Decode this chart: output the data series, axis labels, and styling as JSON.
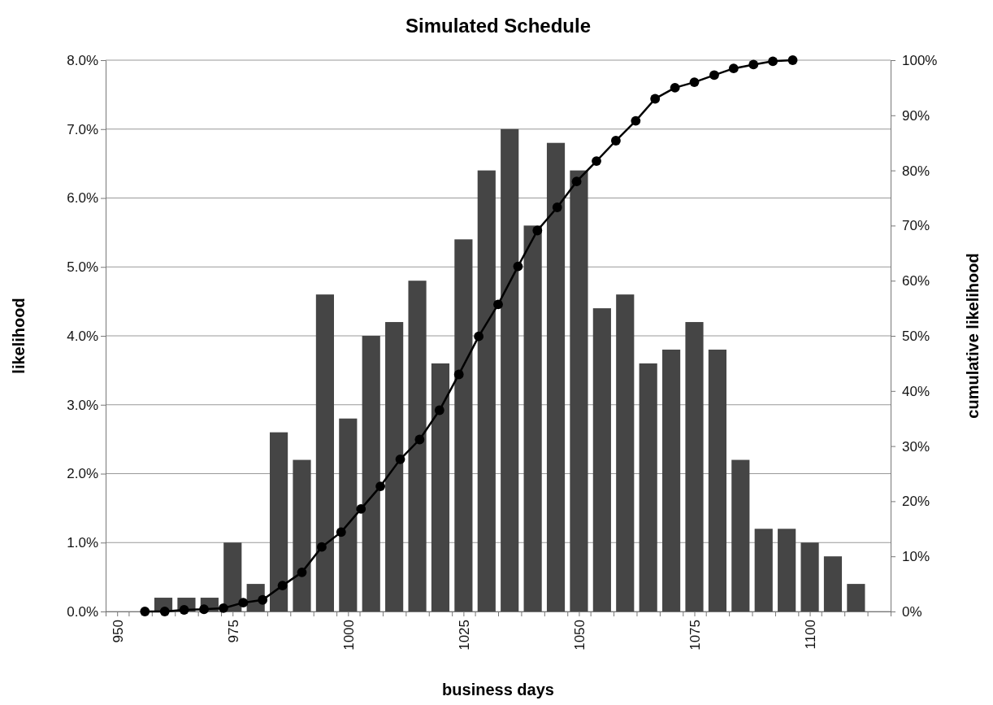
{
  "chart_data": {
    "type": "bar",
    "title": "Simulated Schedule",
    "xlabel": "business days",
    "ylabel": "likelihood",
    "y2label": "cumulative likelihood",
    "x": [
      960,
      965,
      970,
      975,
      980,
      985,
      990,
      995,
      1000,
      1005,
      1010,
      1015,
      1020,
      1025,
      1030,
      1035,
      1040,
      1045,
      1050,
      1055,
      1060,
      1065,
      1070,
      1075,
      1080,
      1085,
      1090,
      1095,
      1100,
      1105,
      1110
    ],
    "series": [
      {
        "color": "#454545",
        "values": [
          0.2,
          0.2,
          0.2,
          1.0,
          0.4,
          2.6,
          2.2,
          4.6,
          2.8,
          4.0,
          4.2,
          4.8,
          3.6,
          5.4,
          6.4,
          7.0,
          5.6,
          6.8,
          6.4,
          4.4,
          4.6,
          3.6,
          3.8,
          4.2,
          3.8,
          2.2,
          1.2,
          1.2,
          1.0,
          0.8,
          0.4
        ]
      },
      {
        "type": "line",
        "axis": "y2",
        "color": "#000000",
        "marker": "circle",
        "line_style": "solid",
        "x": [
          956.0,
          960.3,
          964.5,
          968.8,
          973.0,
          977.3,
          981.5,
          985.8,
          990.0,
          994.3,
          998.5,
          1002.8,
          1007.0,
          1011.3,
          1015.5,
          1019.8,
          1024.0,
          1028.3,
          1032.5,
          1036.8,
          1041.0,
          1045.3,
          1049.5,
          1053.8,
          1058.0,
          1062.3,
          1066.5,
          1070.8,
          1075.0,
          1079.3,
          1083.5,
          1087.8,
          1092.0,
          1096.3
        ],
        "values": [
          0,
          0,
          0.3,
          0.4,
          0.6,
          1.6,
          2.1,
          4.7,
          7.1,
          11.7,
          14.4,
          18.6,
          22.7,
          27.6,
          31.2,
          36.5,
          43.0,
          49.9,
          55.7,
          62.6,
          69.1,
          73.3,
          78.0,
          81.7,
          85.4,
          89,
          93,
          95,
          96,
          97.3,
          98.5,
          99.2,
          99.8,
          100
        ]
      }
    ],
    "xlim": [
      947.5,
      1117.5
    ],
    "xticks": [
      {
        "value": 947.5,
        "label": null
      },
      950,
      {
        "value": 952.5,
        "label": null
      },
      {
        "value": 957.5,
        "label": null
      },
      {
        "value": 962.5,
        "label": null
      },
      {
        "value": 967.5,
        "label": null
      },
      {
        "value": 972.5,
        "label": null
      },
      975,
      {
        "value": 977.5,
        "label": null
      },
      {
        "value": 982.5,
        "label": null
      },
      {
        "value": 987.5,
        "label": null
      },
      {
        "value": 992.5,
        "label": null
      },
      {
        "value": 997.5,
        "label": null
      },
      1000,
      {
        "value": 1002.5,
        "label": null
      },
      {
        "value": 1007.5,
        "label": null
      },
      {
        "value": 1012.5,
        "label": null
      },
      {
        "value": 1017.5,
        "label": null
      },
      {
        "value": 1022.5,
        "label": null
      },
      1025,
      {
        "value": 1027.5,
        "label": null
      },
      {
        "value": 1032.5,
        "label": null
      },
      {
        "value": 1037.5,
        "label": null
      },
      {
        "value": 1042.5,
        "label": null
      },
      {
        "value": 1047.5,
        "label": null
      },
      1050,
      {
        "value": 1052.5,
        "label": null
      },
      {
        "value": 1057.5,
        "label": null
      },
      {
        "value": 1062.5,
        "label": null
      },
      {
        "value": 1067.5,
        "label": null
      },
      {
        "value": 1072.5,
        "label": null
      },
      1075,
      {
        "value": 1077.5,
        "label": null
      },
      {
        "value": 1082.5,
        "label": null
      },
      {
        "value": 1087.5,
        "label": null
      },
      {
        "value": 1092.5,
        "label": null
      },
      {
        "value": 1097.5,
        "label": null
      },
      1100,
      {
        "value": 1102.5,
        "label": null
      },
      {
        "value": 1107.5,
        "label": null
      },
      {
        "value": 1112.5,
        "label": null
      },
      {
        "value": 1117.5,
        "label": null
      }
    ],
    "ylim": [
      0,
      8
    ],
    "yticks": [
      {
        "value": 0,
        "label": "0.0%"
      },
      {
        "value": 1,
        "label": "1.0%"
      },
      {
        "value": 2,
        "label": "2.0%"
      },
      {
        "value": 3,
        "label": "3.0%"
      },
      {
        "value": 4,
        "label": "4.0%"
      },
      {
        "value": 5,
        "label": "5.0%"
      },
      {
        "value": 6,
        "label": "6.0%"
      },
      {
        "value": 7,
        "label": "7.0%"
      },
      {
        "value": 8,
        "label": "8.0%"
      }
    ],
    "y2lim": [
      0,
      100
    ],
    "y2ticks": [
      {
        "value": 0,
        "label": "0%"
      },
      {
        "value": 10,
        "label": "10%"
      },
      {
        "value": 20,
        "label": "20%"
      },
      {
        "value": 30,
        "label": "30%"
      },
      {
        "value": 40,
        "label": "40%"
      },
      {
        "value": 50,
        "label": "50%"
      },
      {
        "value": 60,
        "label": "60%"
      },
      {
        "value": 70,
        "label": "70%"
      },
      {
        "value": 80,
        "label": "80%"
      },
      {
        "value": 90,
        "label": "90%"
      },
      {
        "value": 100,
        "label": "100%"
      }
    ],
    "grid": "y"
  }
}
